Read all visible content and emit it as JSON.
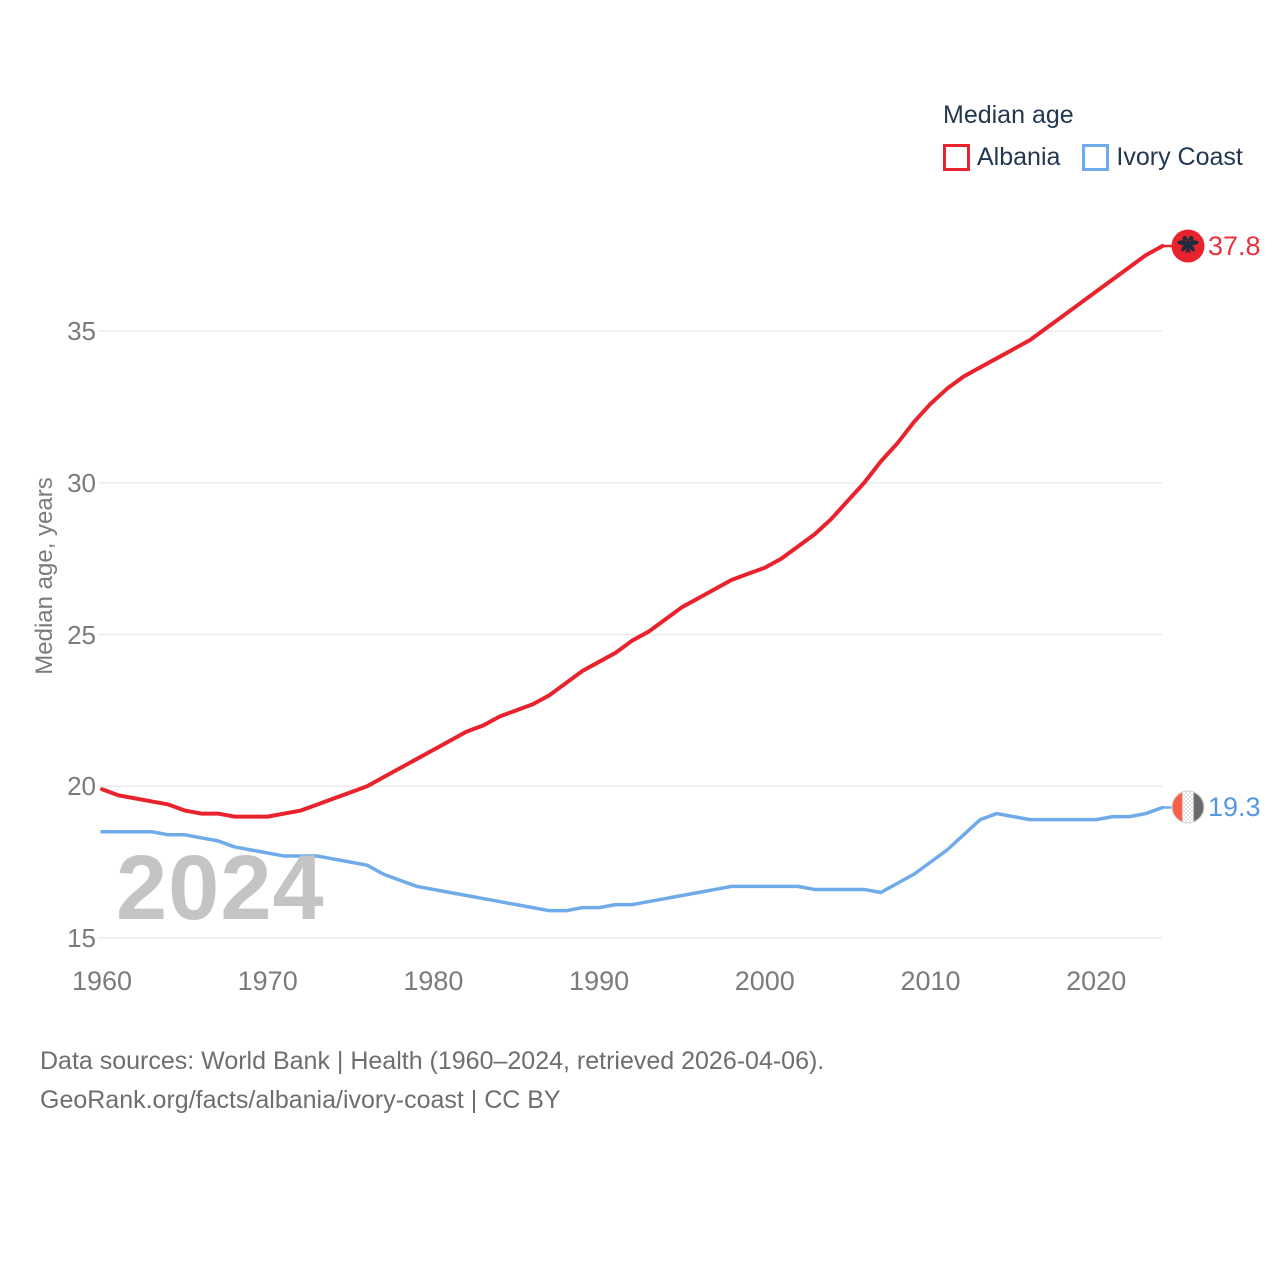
{
  "chart_data": {
    "type": "line",
    "title": "Median age",
    "ylabel": "Median age, years",
    "xlabel": "",
    "x": [
      1960,
      1961,
      1962,
      1963,
      1964,
      1965,
      1966,
      1967,
      1968,
      1969,
      1970,
      1971,
      1972,
      1973,
      1974,
      1975,
      1976,
      1977,
      1978,
      1979,
      1980,
      1981,
      1982,
      1983,
      1984,
      1985,
      1986,
      1987,
      1988,
      1989,
      1990,
      1991,
      1992,
      1993,
      1994,
      1995,
      1996,
      1997,
      1998,
      1999,
      2000,
      2001,
      2002,
      2003,
      2004,
      2005,
      2006,
      2007,
      2008,
      2009,
      2010,
      2011,
      2012,
      2013,
      2014,
      2015,
      2016,
      2017,
      2018,
      2019,
      2020,
      2021,
      2022,
      2023,
      2024
    ],
    "series": [
      {
        "name": "Albania",
        "color": "#e8232d",
        "label_color": "#e8333d",
        "values": [
          19.9,
          19.7,
          19.6,
          19.5,
          19.4,
          19.2,
          19.1,
          19.1,
          19.0,
          19.0,
          19.0,
          19.1,
          19.2,
          19.4,
          19.6,
          19.8,
          20.0,
          20.3,
          20.6,
          20.9,
          21.2,
          21.5,
          21.8,
          22.0,
          22.3,
          22.5,
          22.7,
          23.0,
          23.4,
          23.8,
          24.1,
          24.4,
          24.8,
          25.1,
          25.5,
          25.9,
          26.2,
          26.5,
          26.8,
          27.0,
          27.2,
          27.5,
          27.9,
          28.3,
          28.8,
          29.4,
          30.0,
          30.7,
          31.3,
          32.0,
          32.6,
          33.1,
          33.5,
          33.8,
          34.1,
          34.4,
          34.7,
          35.1,
          35.5,
          35.9,
          36.3,
          36.7,
          37.1,
          37.5,
          37.8
        ]
      },
      {
        "name": "Ivory Coast",
        "color": "#6fabe8",
        "label_color": "#5598e0",
        "values": [
          18.5,
          18.5,
          18.5,
          18.5,
          18.4,
          18.4,
          18.3,
          18.2,
          18.0,
          17.9,
          17.8,
          17.7,
          17.7,
          17.7,
          17.6,
          17.5,
          17.4,
          17.1,
          16.9,
          16.7,
          16.6,
          16.5,
          16.4,
          16.3,
          16.2,
          16.1,
          16.0,
          15.9,
          15.9,
          16.0,
          16.0,
          16.1,
          16.1,
          16.2,
          16.3,
          16.4,
          16.5,
          16.6,
          16.7,
          16.7,
          16.7,
          16.7,
          16.7,
          16.6,
          16.6,
          16.6,
          16.6,
          16.5,
          16.8,
          17.1,
          17.5,
          17.9,
          18.4,
          18.9,
          19.1,
          19.0,
          18.9,
          18.9,
          18.9,
          18.9,
          18.9,
          19.0,
          19.0,
          19.1,
          19.3
        ]
      }
    ],
    "end_labels": {
      "albania": "37.8",
      "ivory_coast": "19.3"
    },
    "xticks": [
      1960,
      1970,
      1980,
      1990,
      2000,
      2010,
      2020
    ],
    "yticks": [
      15,
      20,
      25,
      30,
      35
    ],
    "ylim": [
      15,
      38.5
    ],
    "xlim": [
      1960,
      2024
    ],
    "grid": "horizontal",
    "gridline_color": "#ececec",
    "legend_position": "top-right"
  },
  "watermark": "2024",
  "footer": {
    "line1": "Data sources: World Bank | Health (1960–2024, retrieved 2026-04-06).",
    "line2": "GeoRank.org/facts/albania/ivory-coast | CC BY"
  }
}
